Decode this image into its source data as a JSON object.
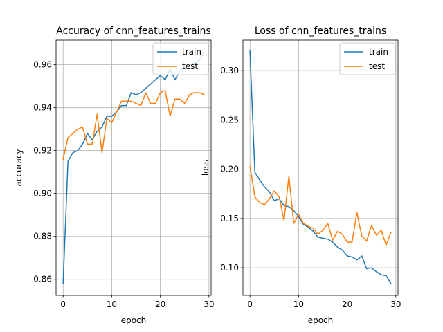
{
  "chart_data": [
    {
      "type": "line",
      "title": "Accuracy of cnn_features_trains",
      "xlabel": "epoch",
      "ylabel": "accuracy",
      "xlim": [
        -1.45,
        30.45
      ],
      "ylim": [
        0.8525,
        0.9715
      ],
      "xticks": [
        0,
        10,
        20,
        30
      ],
      "yticks": [
        0.86,
        0.88,
        0.9,
        0.92,
        0.94,
        0.96
      ],
      "ytick_labels": [
        "0.86",
        "0.88",
        "0.90",
        "0.92",
        "0.94",
        "0.96"
      ],
      "grid": true,
      "legend_position": "upper right",
      "x": [
        0,
        1,
        2,
        3,
        4,
        5,
        6,
        7,
        8,
        9,
        10,
        11,
        12,
        13,
        14,
        15,
        16,
        17,
        18,
        19,
        20,
        21,
        22,
        23,
        24,
        25,
        26,
        27,
        28,
        29
      ],
      "series": [
        {
          "name": "train",
          "color": "#1f77b4",
          "values": [
            0.858,
            0.915,
            0.919,
            0.92,
            0.923,
            0.928,
            0.925,
            0.929,
            0.931,
            0.936,
            0.936,
            0.938,
            0.941,
            0.941,
            0.947,
            0.946,
            0.947,
            0.949,
            0.951,
            0.953,
            0.955,
            0.953,
            0.958,
            0.953,
            0.957,
            0.959,
            0.96,
            0.961,
            0.962,
            0.966
          ]
        },
        {
          "name": "test",
          "color": "#ff7f0e",
          "values": [
            0.916,
            0.926,
            0.928,
            0.93,
            0.931,
            0.923,
            0.923,
            0.937,
            0.919,
            0.935,
            0.933,
            0.938,
            0.943,
            0.943,
            0.943,
            0.942,
            0.941,
            0.947,
            0.942,
            0.942,
            0.947,
            0.948,
            0.936,
            0.944,
            0.944,
            0.942,
            0.946,
            0.947,
            0.947,
            0.946
          ]
        }
      ]
    },
    {
      "type": "line",
      "title": "Loss of cnn_features_trains",
      "xlabel": "epoch",
      "ylabel": "loss",
      "xlim": [
        -1.45,
        30.45
      ],
      "ylim": [
        0.072,
        0.331
      ],
      "xticks": [
        0,
        10,
        20,
        30
      ],
      "yticks": [
        0.1,
        0.15,
        0.2,
        0.25,
        0.3
      ],
      "ytick_labels": [
        "0.10",
        "0.15",
        "0.20",
        "0.25",
        "0.30"
      ],
      "grid": true,
      "legend_position": "upper right",
      "x": [
        0,
        1,
        2,
        3,
        4,
        5,
        6,
        7,
        8,
        9,
        10,
        11,
        12,
        13,
        14,
        15,
        16,
        17,
        18,
        19,
        20,
        21,
        22,
        23,
        24,
        25,
        26,
        27,
        28,
        29
      ],
      "series": [
        {
          "name": "train",
          "color": "#1f77b4",
          "values": [
            0.32,
            0.197,
            0.189,
            0.182,
            0.177,
            0.168,
            0.17,
            0.163,
            0.162,
            0.158,
            0.152,
            0.144,
            0.141,
            0.137,
            0.131,
            0.13,
            0.129,
            0.126,
            0.121,
            0.118,
            0.112,
            0.111,
            0.108,
            0.112,
            0.099,
            0.1,
            0.096,
            0.093,
            0.092,
            0.084
          ]
        },
        {
          "name": "test",
          "color": "#ff7f0e",
          "values": [
            0.203,
            0.172,
            0.166,
            0.164,
            0.17,
            0.178,
            0.172,
            0.148,
            0.193,
            0.145,
            0.154,
            0.145,
            0.142,
            0.14,
            0.134,
            0.138,
            0.145,
            0.128,
            0.137,
            0.134,
            0.126,
            0.126,
            0.156,
            0.132,
            0.127,
            0.143,
            0.133,
            0.138,
            0.123,
            0.136
          ]
        }
      ]
    }
  ]
}
